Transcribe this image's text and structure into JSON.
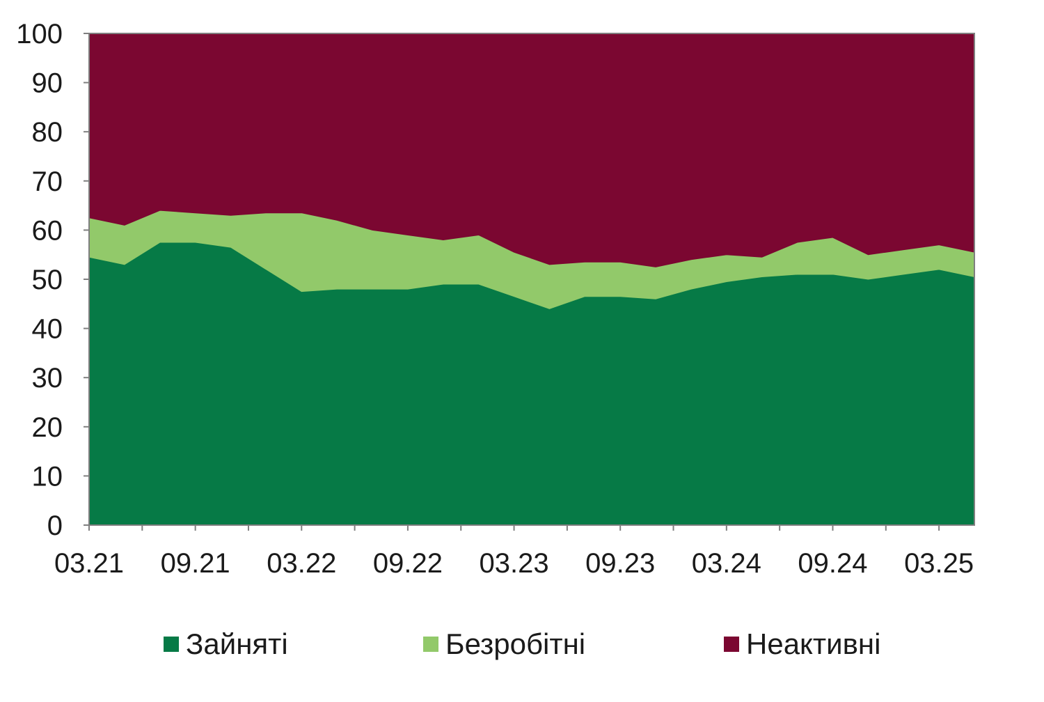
{
  "chart_data": {
    "type": "area",
    "stacked": true,
    "x_tick_labels": [
      "03.21",
      "09.21",
      "03.22",
      "09.22",
      "03.23",
      "09.23",
      "03.24",
      "09.24",
      "03.25"
    ],
    "x": [
      "03.21",
      "05.21",
      "07.21",
      "09.21",
      "11.21",
      "01.22",
      "03.22",
      "05.22",
      "07.22",
      "09.22",
      "11.22",
      "01.23",
      "03.23",
      "05.23",
      "07.23",
      "09.23",
      "11.23",
      "01.24",
      "03.24",
      "05.24",
      "07.24",
      "09.24",
      "11.24",
      "01.25",
      "03.25",
      "05.25"
    ],
    "ylim": [
      0,
      100
    ],
    "y_ticks": [
      0,
      10,
      20,
      30,
      40,
      50,
      60,
      70,
      80,
      90,
      100
    ],
    "grid": false,
    "legend_position": "bottom",
    "series": [
      {
        "name": "Зайняті",
        "color": "#067A46",
        "values": [
          54.5,
          53,
          57.5,
          57.5,
          56.5,
          52,
          47.5,
          48,
          48,
          48,
          49,
          49,
          46.5,
          44,
          46.5,
          46.5,
          46,
          48,
          49.5,
          50.5,
          51,
          51,
          50,
          51,
          52,
          50.5
        ]
      },
      {
        "name": "Безробітні",
        "color": "#92C96A",
        "values": [
          8,
          8,
          6.5,
          6,
          6.5,
          11.5,
          16,
          14,
          12,
          11,
          9,
          10,
          9,
          9,
          7,
          7,
          6.5,
          6,
          5.5,
          4,
          6.5,
          7.5,
          5,
          5,
          5,
          5
        ]
      },
      {
        "name": "Неактивні",
        "color": "#7B0731",
        "values": [
          37.5,
          39,
          36,
          36.5,
          37,
          36.5,
          36.5,
          38,
          40,
          41,
          42,
          41,
          44.5,
          47,
          46.5,
          46.5,
          47.5,
          46,
          45,
          45.5,
          42.5,
          41.5,
          45,
          44,
          43,
          44.5
        ]
      }
    ]
  }
}
